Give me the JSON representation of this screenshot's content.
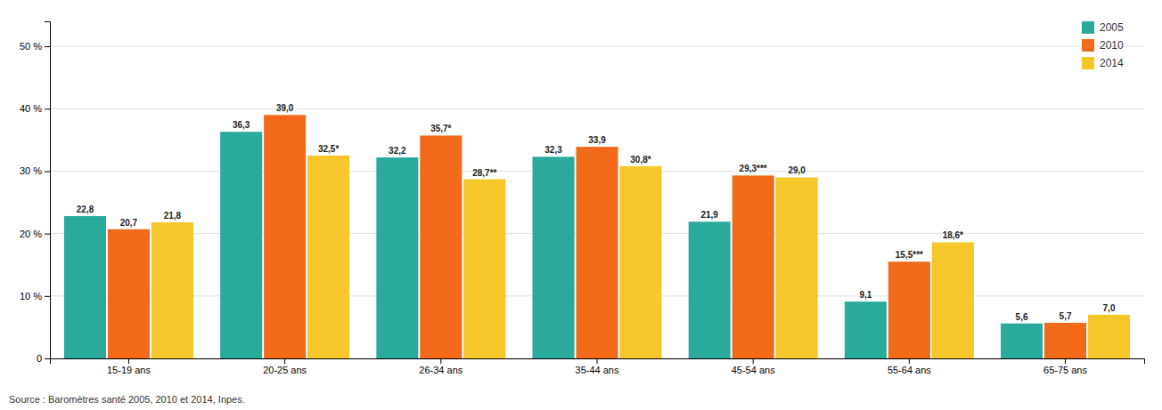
{
  "chart_data": {
    "type": "bar",
    "categories": [
      "15-19 ans",
      "20-25 ans",
      "26-34 ans",
      "35-44 ans",
      "45-54 ans",
      "55-64 ans",
      "65-75 ans"
    ],
    "series": [
      {
        "name": "2005",
        "color": "#2aaa9a",
        "values": [
          22.8,
          36.3,
          32.2,
          32.3,
          21.9,
          9.1,
          5.6
        ],
        "value_labels": [
          "22,8",
          "36,3",
          "32,2",
          "32,3",
          "21,9",
          "9,1",
          "5,6"
        ]
      },
      {
        "name": "2010",
        "color": "#f06a1a",
        "values": [
          20.7,
          39.0,
          35.7,
          33.9,
          29.3,
          15.5,
          5.7
        ],
        "value_labels": [
          "20,7",
          "39,0",
          "35,7*",
          "33,9",
          "29,3***",
          "15,5***",
          "5,7"
        ]
      },
      {
        "name": "2014",
        "color": "#f5c72a",
        "values": [
          21.8,
          32.5,
          28.7,
          30.8,
          29.0,
          18.6,
          7.0
        ],
        "value_labels": [
          "21,8",
          "32,5*",
          "28,7**",
          "30,8*",
          "29,0",
          "18,6*",
          "7,0"
        ]
      }
    ],
    "ylim": [
      0,
      54
    ],
    "yticks": [
      0,
      {
        "value": 10,
        "label": "10 %"
      },
      {
        "value": 20,
        "label": "20 %"
      },
      {
        "value": 30,
        "label": "30 %"
      },
      {
        "value": 40,
        "label": "40 %"
      },
      {
        "value": 50,
        "label": "50 %"
      }
    ],
    "grid": true,
    "legend": "upper right",
    "data_labels": true,
    "annotations": [
      "Source : Baromètres santé 2005, 2010 et 2014, Inpes."
    ]
  }
}
